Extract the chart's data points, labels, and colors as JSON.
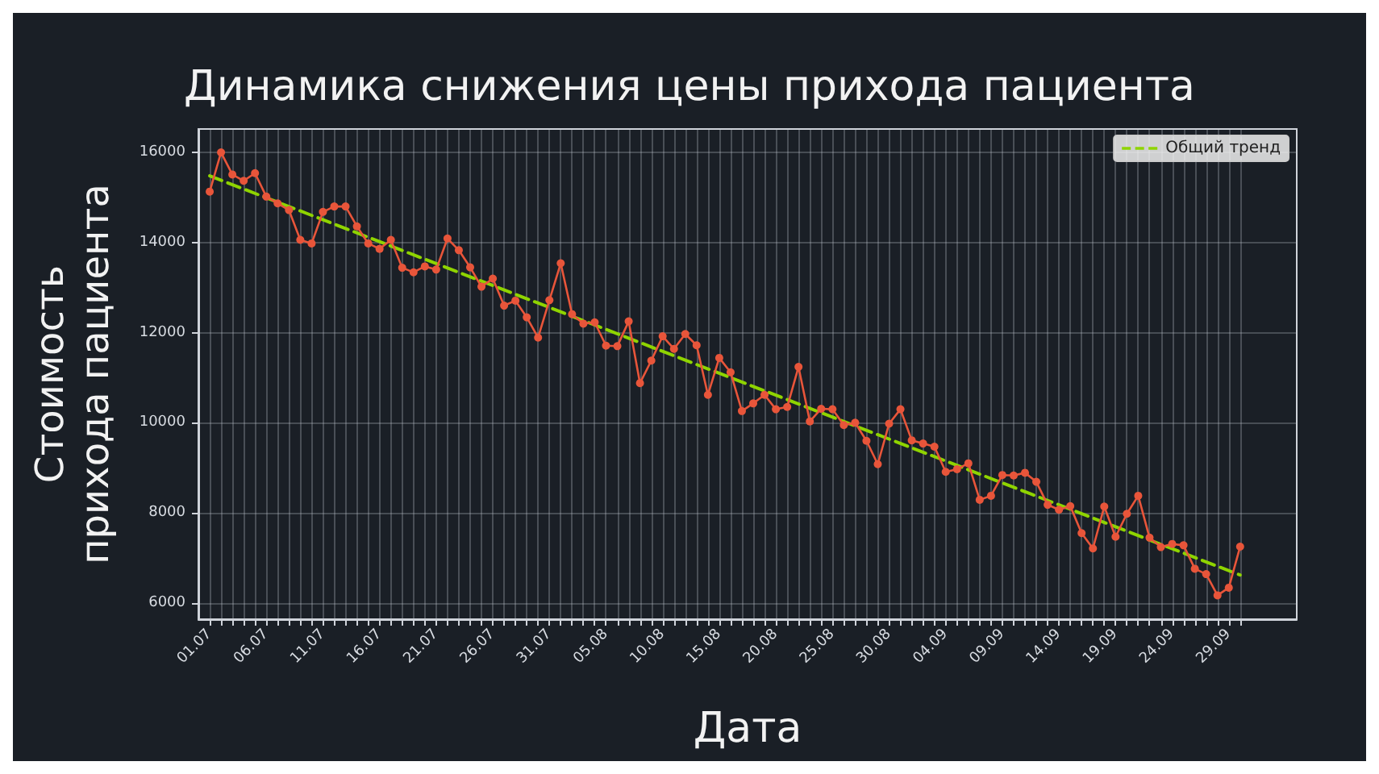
{
  "chart_data": {
    "type": "line",
    "title": "Динамика снижения цены прихода пациента",
    "xlabel": "Дата",
    "ylabel": "Стоимость\nприхода пациента",
    "x": [
      "--07-01",
      "--07-02",
      "--07-03",
      "--07-04",
      "--07-05",
      "--07-06",
      "--07-07",
      "--07-08",
      "--07-09",
      "--07-10",
      "--07-11",
      "--07-12",
      "--07-13",
      "--07-14",
      "--07-15",
      "--07-16",
      "--07-17",
      "--07-18",
      "--07-19",
      "--07-20",
      "--07-21",
      "--07-22",
      "--07-23",
      "--07-24",
      "--07-25",
      "--07-26",
      "--07-27",
      "--07-28",
      "--07-29",
      "--07-30",
      "--07-31",
      "--08-01",
      "--08-02",
      "--08-03",
      "--08-04",
      "--08-05",
      "--08-06",
      "--08-07",
      "--08-08",
      "--08-09",
      "--08-10",
      "--08-11",
      "--08-12",
      "--08-13",
      "--08-14",
      "--08-15",
      "--08-16",
      "--08-17",
      "--08-18",
      "--08-19",
      "--08-20",
      "--08-21",
      "--08-22",
      "--08-23",
      "--08-24",
      "--08-25",
      "--08-26",
      "--08-27",
      "--08-28",
      "--08-29",
      "--08-30",
      "--08-31",
      "--09-01",
      "--09-02",
      "--09-03",
      "--09-04",
      "--09-05",
      "--09-06",
      "--09-07",
      "--09-08",
      "--09-09",
      "--09-10",
      "--09-11",
      "--09-12",
      "--09-13",
      "--09-14",
      "--09-15",
      "--09-16",
      "--09-17",
      "--09-18",
      "--09-19",
      "--09-20",
      "--09-21",
      "--09-22",
      "--09-23",
      "--09-24",
      "--09-25",
      "--09-26",
      "--09-27",
      "--09-28",
      "--09-29",
      "--09-30"
    ],
    "series": [
      {
        "color": "#e8553a",
        "marker": "circle",
        "line_style": "solid",
        "values": [
          15130,
          16000,
          15510,
          15370,
          15540,
          15020,
          14870,
          14720,
          14060,
          13980,
          14680,
          14800,
          14800,
          14360,
          13980,
          13860,
          14060,
          13440,
          13340,
          13470,
          13400,
          14090,
          13830,
          13450,
          13020,
          13200,
          12600,
          12710,
          12340,
          11890,
          12720,
          13540,
          12410,
          12200,
          12230,
          11710,
          11700,
          12250,
          10880,
          11380,
          11920,
          11640,
          11970,
          11720,
          10620,
          11440,
          11120,
          10260,
          10430,
          10620,
          10300,
          10350,
          11240,
          10030,
          10310,
          10300,
          9950,
          10000,
          9600,
          9080,
          9980,
          10300,
          9610,
          9540,
          9470,
          8910,
          8970,
          9100,
          8290,
          8380,
          8840,
          8830,
          8890,
          8690,
          8180,
          8070,
          8150,
          7550,
          7210,
          8140,
          7470,
          7980,
          8380,
          7450,
          7240,
          7310,
          7280,
          6760,
          6640,
          6170,
          6340,
          7250
        ]
      },
      {
        "name": "Общий тренд",
        "type": "line",
        "color": "#8fd400",
        "marker": "none",
        "line_style": "dashed",
        "x": [
          "--07-01",
          "--09-30"
        ],
        "values": [
          15480,
          6620
        ]
      }
    ],
    "xlim": [
      "--06-30",
      "--10-05"
    ],
    "xticks": [
      {
        "value": "--07-01",
        "label": "01.07"
      },
      {
        "value": "--07-02",
        "label": null
      },
      {
        "value": "--07-03",
        "label": null
      },
      {
        "value": "--07-04",
        "label": null
      },
      {
        "value": "--07-05",
        "label": null
      },
      {
        "value": "--07-06",
        "label": "06.07"
      },
      {
        "value": "--07-07",
        "label": null
      },
      {
        "value": "--07-08",
        "label": null
      },
      {
        "value": "--07-09",
        "label": null
      },
      {
        "value": "--07-10",
        "label": null
      },
      {
        "value": "--07-11",
        "label": "11.07"
      },
      {
        "value": "--07-12",
        "label": null
      },
      {
        "value": "--07-13",
        "label": null
      },
      {
        "value": "--07-14",
        "label": null
      },
      {
        "value": "--07-15",
        "label": null
      },
      {
        "value": "--07-16",
        "label": "16.07"
      },
      {
        "value": "--07-17",
        "label": null
      },
      {
        "value": "--07-18",
        "label": null
      },
      {
        "value": "--07-19",
        "label": null
      },
      {
        "value": "--07-20",
        "label": null
      },
      {
        "value": "--07-21",
        "label": "21.07"
      },
      {
        "value": "--07-22",
        "label": null
      },
      {
        "value": "--07-23",
        "label": null
      },
      {
        "value": "--07-24",
        "label": null
      },
      {
        "value": "--07-25",
        "label": null
      },
      {
        "value": "--07-26",
        "label": "26.07"
      },
      {
        "value": "--07-27",
        "label": null
      },
      {
        "value": "--07-28",
        "label": null
      },
      {
        "value": "--07-29",
        "label": null
      },
      {
        "value": "--07-30",
        "label": null
      },
      {
        "value": "--07-31",
        "label": "31.07"
      },
      {
        "value": "--08-01",
        "label": null
      },
      {
        "value": "--08-02",
        "label": null
      },
      {
        "value": "--08-03",
        "label": null
      },
      {
        "value": "--08-04",
        "label": null
      },
      {
        "value": "--08-05",
        "label": "05.08"
      },
      {
        "value": "--08-06",
        "label": null
      },
      {
        "value": "--08-07",
        "label": null
      },
      {
        "value": "--08-08",
        "label": null
      },
      {
        "value": "--08-09",
        "label": null
      },
      {
        "value": "--08-10",
        "label": "10.08"
      },
      {
        "value": "--08-11",
        "label": null
      },
      {
        "value": "--08-12",
        "label": null
      },
      {
        "value": "--08-13",
        "label": null
      },
      {
        "value": "--08-14",
        "label": null
      },
      {
        "value": "--08-15",
        "label": "15.08"
      },
      {
        "value": "--08-16",
        "label": null
      },
      {
        "value": "--08-17",
        "label": null
      },
      {
        "value": "--08-18",
        "label": null
      },
      {
        "value": "--08-19",
        "label": null
      },
      {
        "value": "--08-20",
        "label": "20.08"
      },
      {
        "value": "--08-21",
        "label": null
      },
      {
        "value": "--08-22",
        "label": null
      },
      {
        "value": "--08-23",
        "label": null
      },
      {
        "value": "--08-24",
        "label": null
      },
      {
        "value": "--08-25",
        "label": "25.08"
      },
      {
        "value": "--08-26",
        "label": null
      },
      {
        "value": "--08-27",
        "label": null
      },
      {
        "value": "--08-28",
        "label": null
      },
      {
        "value": "--08-29",
        "label": null
      },
      {
        "value": "--08-30",
        "label": "30.08"
      },
      {
        "value": "--08-31",
        "label": null
      },
      {
        "value": "--09-01",
        "label": null
      },
      {
        "value": "--09-02",
        "label": null
      },
      {
        "value": "--09-03",
        "label": null
      },
      {
        "value": "--09-04",
        "label": "04.09"
      },
      {
        "value": "--09-05",
        "label": null
      },
      {
        "value": "--09-06",
        "label": null
      },
      {
        "value": "--09-07",
        "label": null
      },
      {
        "value": "--09-08",
        "label": null
      },
      {
        "value": "--09-09",
        "label": "09.09"
      },
      {
        "value": "--09-10",
        "label": null
      },
      {
        "value": "--09-11",
        "label": null
      },
      {
        "value": "--09-12",
        "label": null
      },
      {
        "value": "--09-13",
        "label": null
      },
      {
        "value": "--09-14",
        "label": "14.09"
      },
      {
        "value": "--09-15",
        "label": null
      },
      {
        "value": "--09-16",
        "label": null
      },
      {
        "value": "--09-17",
        "label": null
      },
      {
        "value": "--09-18",
        "label": null
      },
      {
        "value": "--09-19",
        "label": "19.09"
      },
      {
        "value": "--09-20",
        "label": null
      },
      {
        "value": "--09-21",
        "label": null
      },
      {
        "value": "--09-22",
        "label": null
      },
      {
        "value": "--09-23",
        "label": null
      },
      {
        "value": "--09-24",
        "label": "24.09"
      },
      {
        "value": "--09-25",
        "label": null
      },
      {
        "value": "--09-26",
        "label": null
      },
      {
        "value": "--09-27",
        "label": null
      },
      {
        "value": "--09-28",
        "label": null
      },
      {
        "value": "--09-29",
        "label": "29.09"
      },
      {
        "value": "--09-30",
        "label": null
      }
    ],
    "ylim": [
      5640,
      16520
    ],
    "yticks": [
      6000,
      8000,
      10000,
      12000,
      14000,
      16000
    ],
    "grid": true,
    "legend": "top right"
  }
}
